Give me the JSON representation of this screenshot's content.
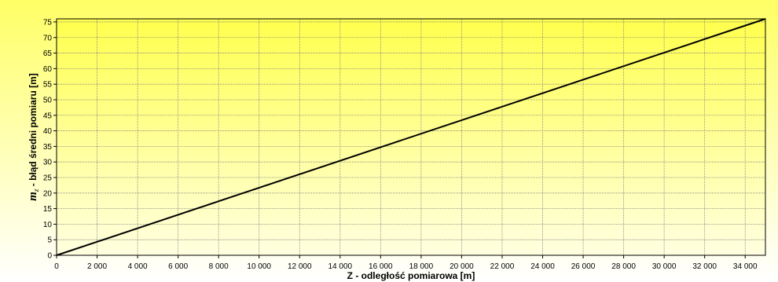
{
  "chart_data": {
    "type": "line",
    "title": "",
    "xlabel": "Z - odległość pomiarowa [m]",
    "ylabel": {
      "symbol": "m",
      "subscript": "z",
      "text": " - błąd średni pomiaru [m]"
    },
    "xlim": [
      0,
      35000
    ],
    "ylim": [
      0,
      76
    ],
    "x_ticks": [
      0,
      2000,
      4000,
      6000,
      8000,
      10000,
      12000,
      14000,
      16000,
      18000,
      20000,
      22000,
      24000,
      26000,
      28000,
      30000,
      32000,
      34000
    ],
    "x_tick_labels": [
      "0",
      "2 000",
      "4 000",
      "6 000",
      "8 000",
      "10 000",
      "12 000",
      "14 000",
      "16 000",
      "18 000",
      "20 000",
      "22 000",
      "24 000",
      "26 000",
      "28 000",
      "30 000",
      "32 000",
      "34 000"
    ],
    "y_ticks": [
      0,
      5,
      10,
      15,
      20,
      25,
      30,
      35,
      40,
      45,
      50,
      55,
      60,
      65,
      70,
      75
    ],
    "y_tick_labels": [
      "0",
      "5",
      "10",
      "15",
      "20",
      "25",
      "30",
      "35",
      "40",
      "45",
      "50",
      "55",
      "60",
      "65",
      "70",
      "75"
    ],
    "grid": true,
    "legend": "none",
    "series": [
      {
        "x": [
          0,
          35000
        ],
        "y": [
          0,
          76
        ]
      }
    ],
    "colors": {
      "background_top": "#ffff66",
      "background_bottom": "#ffffff",
      "plot_top": "#ffff4d",
      "plot_bottom": "#ffffe0",
      "line": "#000000",
      "grid": "#808080"
    }
  }
}
